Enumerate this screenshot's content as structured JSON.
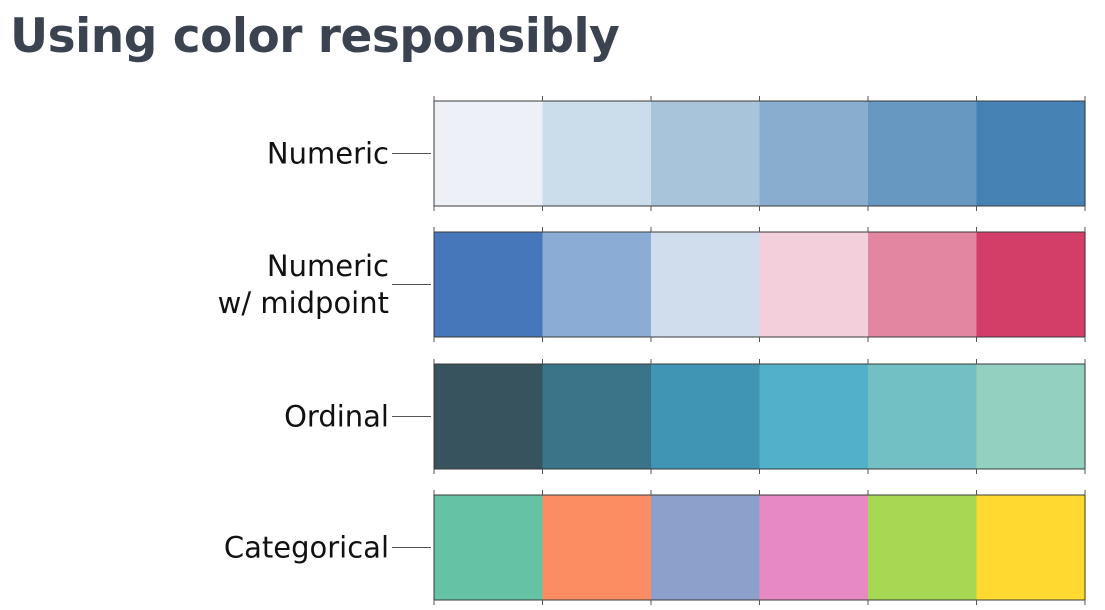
{
  "title": "Using color responsibly",
  "palettes": [
    {
      "label_lines": [
        "Numeric"
      ],
      "swatches": [
        "#edf1f7",
        "#cbdcea",
        "#a8c4db",
        "#89adcf",
        "#6798c1",
        "#4682b4"
      ]
    },
    {
      "label_lines": [
        "Numeric",
        "w/ midpoint"
      ],
      "swatches": [
        "#4677bb",
        "#8badd5",
        "#d0ddec",
        "#f2cfdb",
        "#e386a2",
        "#d33e69"
      ]
    },
    {
      "label_lines": [
        "Ordinal"
      ],
      "swatches": [
        "#37535d",
        "#3b7389",
        "#4095b5",
        "#53b0cb",
        "#72bfc4",
        "#93d0bf"
      ]
    },
    {
      "label_lines": [
        "Categorical"
      ],
      "swatches": [
        "#66c2a5",
        "#fc8d62",
        "#8da0cb",
        "#e78ac3",
        "#a6d854",
        "#ffd92f"
      ]
    }
  ]
}
